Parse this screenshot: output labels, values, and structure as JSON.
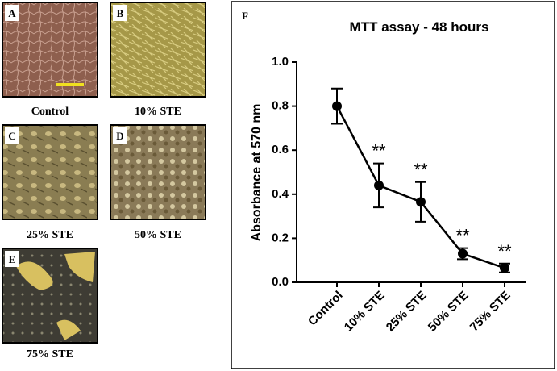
{
  "panels": [
    {
      "label": "A",
      "caption": "Control"
    },
    {
      "label": "B",
      "caption": "10% STE"
    },
    {
      "label": "C",
      "caption": "25% STE"
    },
    {
      "label": "D",
      "caption": "50% STE"
    },
    {
      "label": "E",
      "caption": "75% STE"
    }
  ],
  "chart_data": {
    "type": "line",
    "panel_label": "F",
    "title": "MTT assay - 48 hours",
    "y_label": "Absorbance at 570 nm",
    "categories": [
      "Control",
      "10% STE",
      "25% STE",
      "50% STE",
      "75% STE"
    ],
    "values": [
      0.8,
      0.44,
      0.365,
      0.13,
      0.065
    ],
    "errors": [
      0.08,
      0.1,
      0.09,
      0.025,
      0.02
    ],
    "annotations": [
      null,
      "**",
      "**",
      "**",
      "**"
    ],
    "color": "#000000",
    "ylim": [
      0,
      1.0
    ],
    "yticks": [
      {
        "value": 0,
        "label": "0.0"
      },
      {
        "value": 0.2,
        "label": "0.2"
      },
      {
        "value": 0.4,
        "label": "0.4"
      },
      {
        "value": 0.6,
        "label": "0.6"
      },
      {
        "value": 0.8,
        "label": "0.8"
      },
      {
        "value": 1.0,
        "label": "1.0"
      }
    ]
  }
}
